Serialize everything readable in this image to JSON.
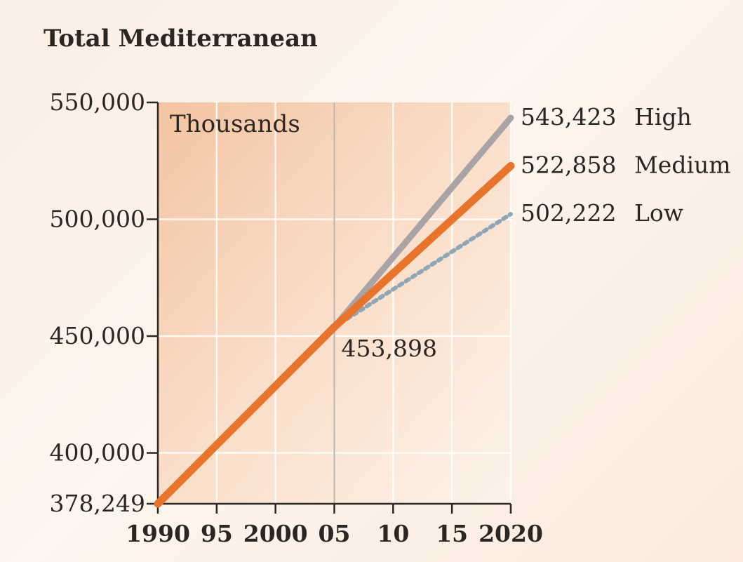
{
  "chart_data": {
    "type": "line",
    "title": "Total Mediterranean",
    "unit_label": "Thousands",
    "xlim": [
      1990,
      2020
    ],
    "ylim": [
      378249,
      550000
    ],
    "x_ticks": [
      1990,
      1995,
      2000,
      2005,
      2010,
      2015,
      2020
    ],
    "x_tick_labels": [
      "1990",
      "95",
      "2000",
      "05",
      "10",
      "15",
      "2020"
    ],
    "y_ticks": [
      378249,
      400000,
      450000,
      500000,
      550000
    ],
    "y_tick_labels": [
      "378,249",
      "400,000",
      "450,000",
      "500,000",
      "550,000"
    ],
    "reference_x": 2005,
    "grid": true,
    "series": [
      {
        "name": "High",
        "style": "solid",
        "color": "#a9a3a6",
        "x": [
          2005,
          2020
        ],
        "y": [
          453898,
          543423
        ],
        "end_label": "543,423"
      },
      {
        "name": "Low",
        "style": "dotted",
        "color": "#8fa6b6",
        "x": [
          2005,
          2020
        ],
        "y": [
          453898,
          502222
        ],
        "end_label": "502,222"
      },
      {
        "name": "Medium",
        "style": "solid",
        "color": "#e8742c",
        "x": [
          1990,
          2005,
          2020
        ],
        "y": [
          378249,
          453898,
          522858
        ],
        "end_label": "522,858"
      }
    ],
    "annotations": [
      {
        "x": 2005,
        "y": 453898,
        "text": "453,898"
      }
    ]
  }
}
